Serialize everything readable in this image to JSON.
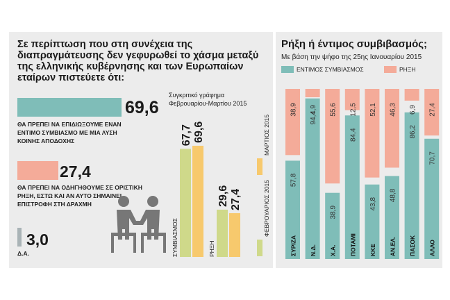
{
  "main_title": "Σε περίπτωση που στη συνέχεια της διαπραγμάτευσης δεν γεφυρωθεί το χάσμα μεταξύ της ελληνικής κυβέρνησης και των Ευρωπαίων εταίρων πιστεύετε ότι:",
  "answers": [
    {
      "text_lines": [
        "ΘΑ ΠΡΕΠΕΙ ΝΑ ΕΠΙΔΙΩΞΟΥΜΕ ΕΝΑΝ",
        "ΕΝΤΙΜΟ ΣΥΜΒΙΑΣΜΟ ΜΕ ΜΙΑ ΛΥΣΗ",
        "ΚΟΙΝΗΣ ΑΠΟΔΟΧΗΣ"
      ],
      "value": "69,6",
      "color": "#7fbdb8"
    },
    {
      "text_lines": [
        "ΘΑ ΠΡΕΠΕΙ ΝΑ ΟΔΗΓΗΘΟΥΜΕ ΣΕ ΟΡΙΣΤΙΚΗ",
        "ΡΗΞΗ, ΕΣΤΩ ΚΑΙ ΑΝ ΑΥΤΟ ΣΗΜΑΙΝΕΙ",
        "ΕΠΙΣΤΡΟΦΗ ΣΤΗ ΔΡΑΧΜΗ"
      ],
      "value": "27,4",
      "color": "#f4ab99"
    },
    {
      "text_lines": [
        "Δ.Α."
      ],
      "value": "3,0",
      "color": "#a9b3b6"
    }
  ],
  "chart_data": [
    {
      "type": "bar",
      "title": "Σε περίπτωση που στη συνέχεια της διαπραγμάτευσης δεν γεφυρωθεί το χάσμα μεταξύ της ελληνικής κυβέρνησης και των Ευρωπαίων εταίρων πιστεύετε ότι:",
      "orientation": "horizontal",
      "categories": [
        "ΕΝΤΙΜΟΣ ΣΥΜΒΙΑΣΜΟΣ",
        "ΡΗΞΗ",
        "Δ.Α."
      ],
      "values": [
        69.6,
        27.4,
        3.0
      ]
    },
    {
      "type": "bar",
      "title": "Συγκριτικό γράφημα Φεβρουαρίου-Μαρτίου 2015",
      "categories": [
        "ΣΥΜΒΙΑΣΜΟΣ",
        "ΡΗΞΗ"
      ],
      "series": [
        {
          "name": "ΦΕΒΡΟΥΑΡΙΟΣ 2015",
          "values": [
            67.7,
            29.6
          ],
          "labels": [
            "67,7",
            "29,6"
          ],
          "color": "#cfd98a"
        },
        {
          "name": "ΜΑΡΤΙΟΣ 2015",
          "values": [
            69.6,
            27.4
          ],
          "labels": [
            "69,6",
            "27,4"
          ],
          "color": "#f7c96d"
        }
      ],
      "ylim": [
        0,
        100
      ]
    },
    {
      "type": "bar",
      "stacked": true,
      "title": "Ρήξη ή έντιμος συμβιβασμός;",
      "subtitle": "Με βάση την ψήφο της 25ης Ιανουαρίου 2015",
      "categories": [
        "ΣΥΡΙΖΑ",
        "Ν.Δ.",
        "Χ.Α.",
        "ΠΟΤΑΜΙ",
        "ΚΚΕ",
        "ΑΝ.ΕΛ.",
        "ΠΑΣΟΚ",
        "ΑΛΛΟ"
      ],
      "series": [
        {
          "name": "ΕΝΤΙΜΟΣ ΣΥΜΒΙΑΣΜΟΣ",
          "values": [
            57.8,
            94.4,
            38.9,
            84.4,
            43.8,
            48.8,
            86.2,
            70.7
          ],
          "labels": [
            "57,8",
            "94,4",
            "38,9",
            "84,4",
            "43,8",
            "48,8",
            "86,2",
            "70,7"
          ],
          "color": "#7fbdb8"
        },
        {
          "name": "ΡΗΞΗ",
          "values": [
            38.9,
            4.9,
            55.6,
            12.5,
            52.1,
            46.3,
            6.9,
            27.4
          ],
          "labels": [
            "38,9",
            "4,9",
            "55,6",
            "12,5",
            "52,1",
            "46,3",
            "6,9",
            "27,4"
          ],
          "color": "#f4ab99"
        }
      ],
      "ylim": [
        0,
        100
      ]
    }
  ],
  "colors": {
    "panel": "#ececec",
    "teal": "#7fbdb8",
    "salmon": "#f4ab99",
    "gray": "#a9b3b6",
    "feb": "#cfd98a",
    "mar": "#f7c96d",
    "icon": "#777777"
  },
  "icon": "handshake-icon"
}
